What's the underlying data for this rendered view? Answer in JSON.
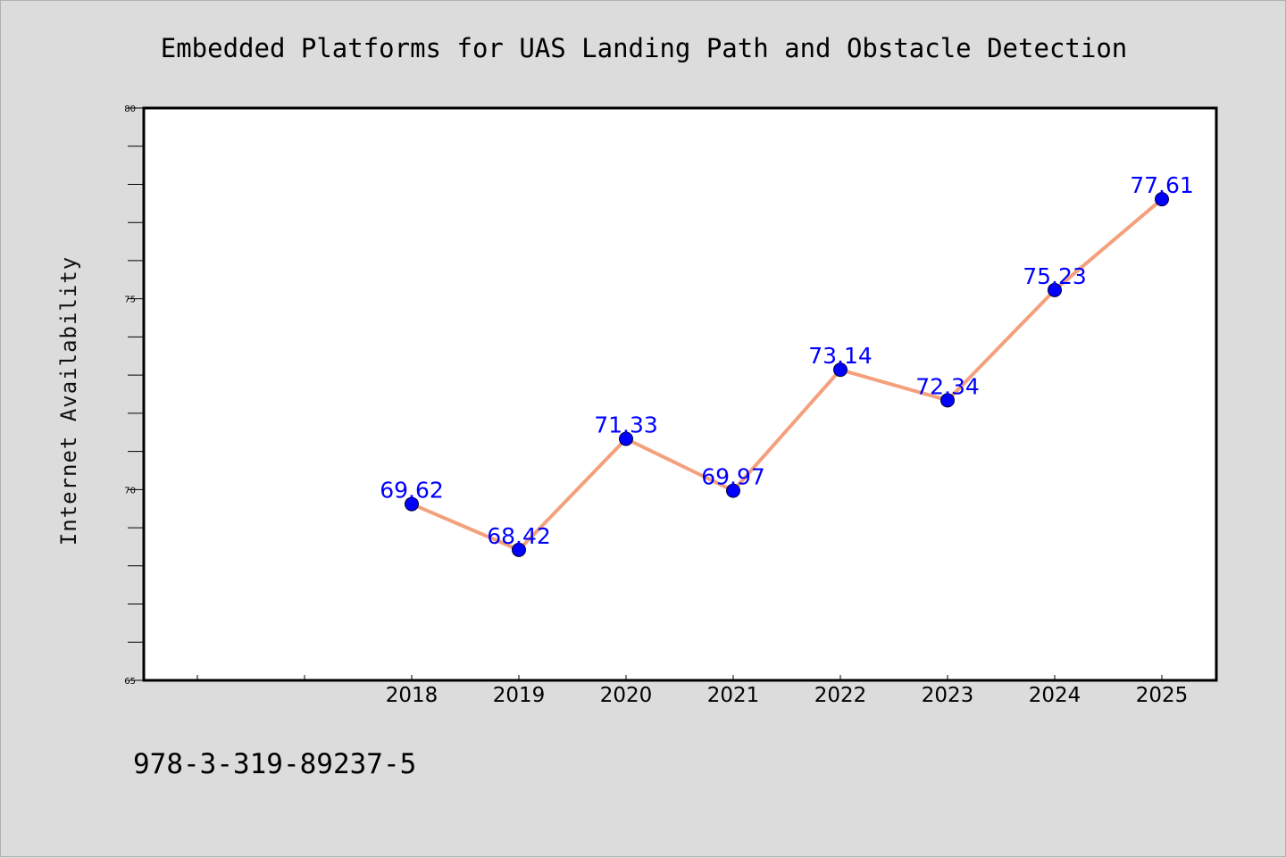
{
  "chart_data": {
    "type": "line",
    "title": "Embedded Platforms for UAS Landing Path and Obstacle Detection",
    "xlabel": "",
    "ylabel": "Internet Availability",
    "categories": [
      "2018",
      "2019",
      "2020",
      "2021",
      "2022",
      "2023",
      "2024",
      "2025"
    ],
    "values": [
      69.62,
      68.42,
      71.33,
      69.97,
      73.14,
      72.34,
      75.23,
      77.61
    ],
    "data_labels": [
      "69.62",
      "68.42",
      "71.33",
      "69.97",
      "73.14",
      "72.34",
      "75.23",
      "77.61"
    ],
    "ylim": [
      65,
      80
    ],
    "yticks": [
      "65",
      "70",
      "75",
      "80"
    ],
    "grid": false,
    "colors": {
      "line": "#f4a07c",
      "marker": "#0000ff",
      "label": "#0000ff",
      "plot_bg": "#ffffff",
      "page_bg": "#dcdcdc"
    }
  },
  "footer": {
    "isbn": "978-3-319-89237-5"
  }
}
